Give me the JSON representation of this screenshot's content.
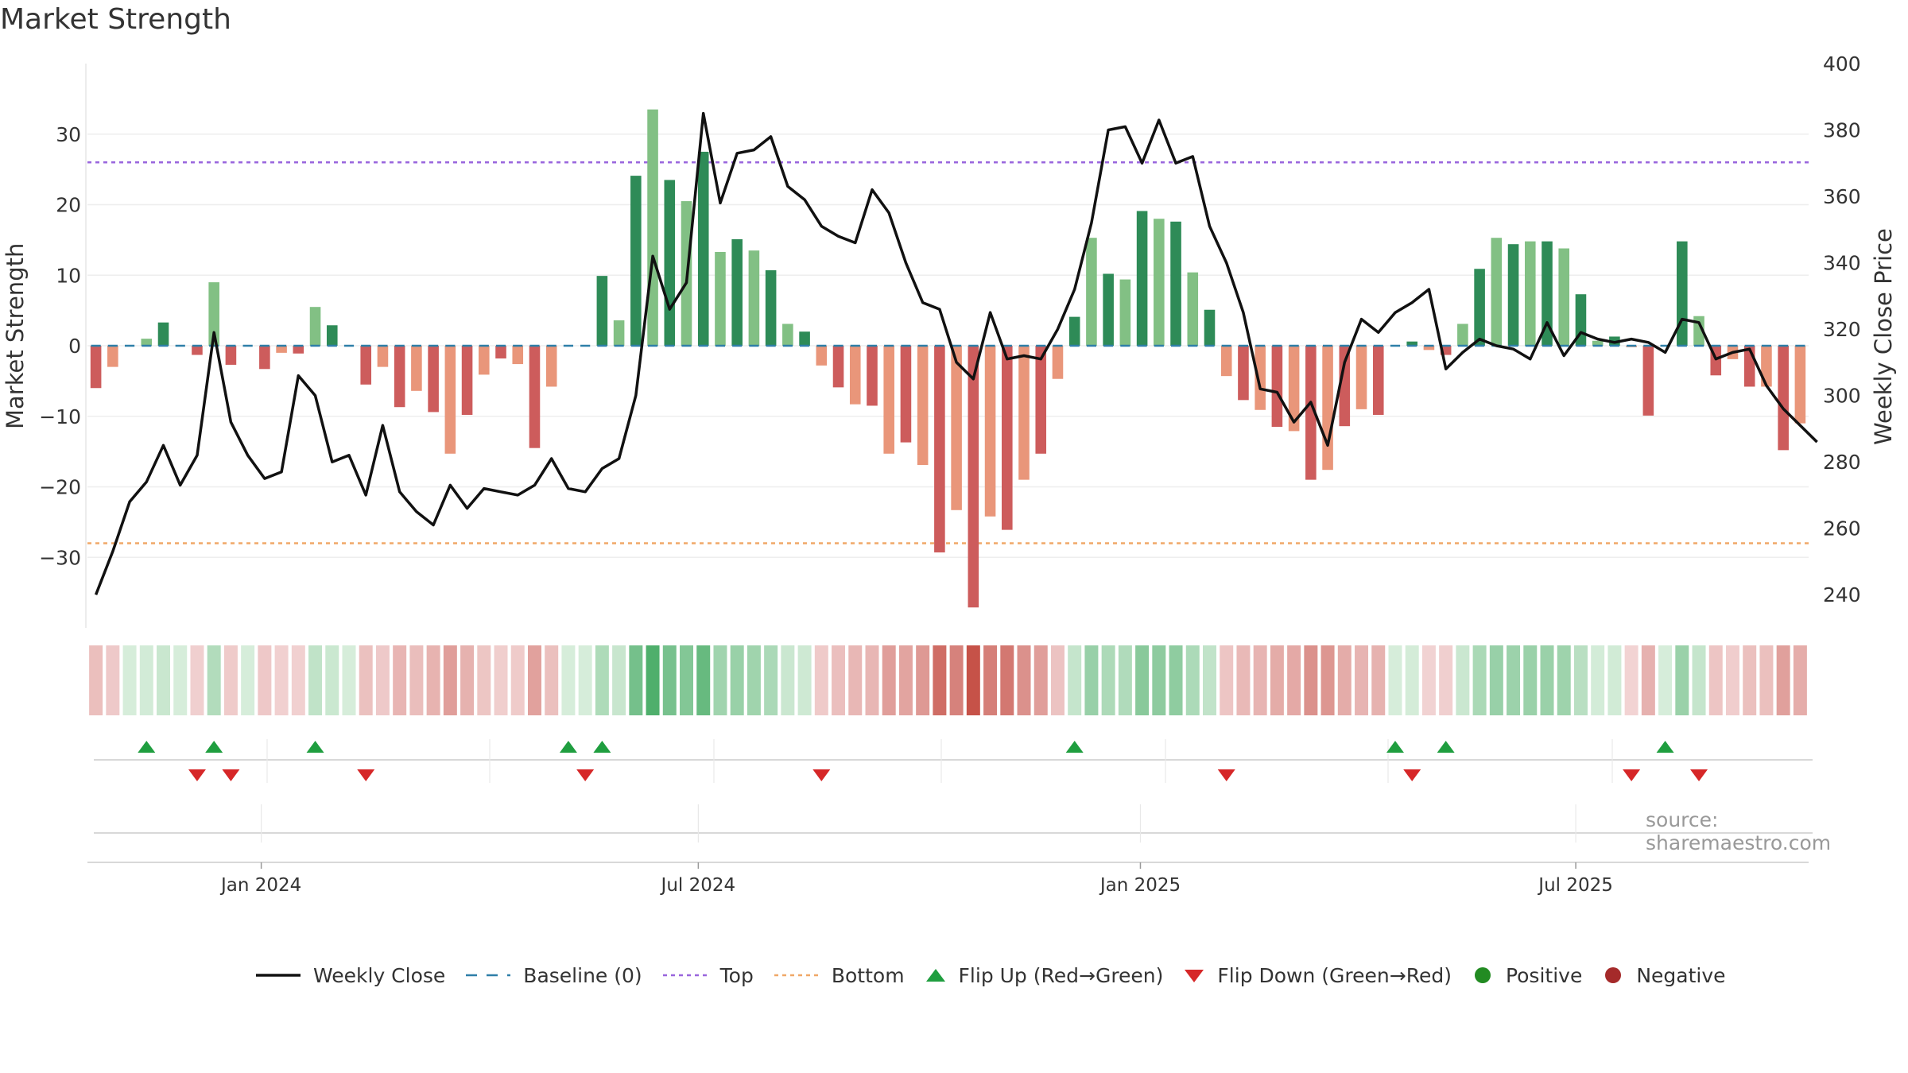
{
  "chart_data": {
    "type": "bar",
    "title": "Market Strength",
    "ylabel": "Market Strength",
    "y2label": "Weekly Close Price",
    "ylim": [
      -40,
      40
    ],
    "y2lim": [
      230,
      400
    ],
    "yticks": [
      30,
      20,
      10,
      0,
      -10,
      -20,
      -30
    ],
    "ytick_labels": [
      "30",
      "20",
      "10",
      "0",
      "−10",
      "−20",
      "−30"
    ],
    "y2ticks": [
      400,
      380,
      360,
      340,
      320,
      300,
      280,
      260,
      240
    ],
    "y2tick_labels": [
      "400",
      "380",
      "360",
      "340",
      "320",
      "300",
      "280",
      "260",
      "240"
    ],
    "top_threshold": 26,
    "bottom_threshold": -28,
    "xtick_labels": [
      "Jan 2024",
      "Jul 2024",
      "Jan 2025",
      "Jul 2025"
    ],
    "xtick_weeks": [
      10.3,
      36.2,
      62.4,
      88.2
    ],
    "strength": [
      -6,
      -3,
      0,
      1,
      3.3,
      0,
      -1.3,
      9,
      -2.7,
      0,
      -3.3,
      -1,
      -1.1,
      5.5,
      2.9,
      0,
      -5.5,
      -3,
      -8.7,
      -6.4,
      -9.4,
      -15.3,
      -9.8,
      -4.1,
      -1.8,
      -2.6,
      -14.5,
      -5.8,
      0,
      0,
      9.9,
      3.6,
      24.1,
      33.5,
      23.5,
      20.5,
      27.5,
      13.3,
      15.1,
      13.5,
      10.7,
      3.1,
      2,
      -2.8,
      -5.9,
      -8.3,
      -8.5,
      -15.3,
      -13.7,
      -16.9,
      -29.3,
      -23.3,
      -37.1,
      -24.2,
      -26.1,
      -19,
      -15.3,
      -4.7,
      4.1,
      15.3,
      10.2,
      9.4,
      19.1,
      18,
      17.6,
      10.4,
      5.1,
      -4.3,
      -7.7,
      -9.1,
      -11.5,
      -12.1,
      -19,
      -17.6,
      -11.4,
      -9,
      -9.8,
      0,
      0.6,
      -0.6,
      -1.3,
      3.1,
      10.9,
      15.3,
      14.4,
      14.8,
      14.8,
      13.8,
      7.3,
      0.7,
      1.3,
      -0.2,
      -9.9,
      0,
      14.8,
      4.2,
      -4.2,
      -1.9,
      -5.8,
      -5.8,
      -14.8,
      -11
    ],
    "weekly_close": [
      240,
      253,
      268,
      274,
      285,
      273,
      282,
      319,
      292,
      282,
      275,
      277,
      306,
      300,
      280,
      282,
      270,
      291,
      271,
      265,
      261,
      273,
      266,
      272,
      271,
      270,
      273,
      281,
      272,
      271,
      278,
      281,
      300,
      342,
      326,
      334,
      385,
      358,
      373,
      374,
      378,
      363,
      359,
      351,
      348,
      346,
      362,
      355,
      340,
      328,
      326,
      310,
      305,
      325,
      311,
      312,
      311,
      320,
      332,
      352,
      380,
      381,
      370,
      383,
      370,
      372,
      351,
      340,
      325,
      302,
      301,
      292,
      298,
      285,
      310,
      323,
      319,
      325,
      328,
      332,
      308,
      313,
      317,
      315,
      314,
      311,
      322,
      312,
      319,
      317,
      316,
      317,
      316,
      313,
      323,
      322,
      311,
      313,
      314,
      303,
      296,
      291,
      286
    ],
    "flip_up_weeks": [
      3,
      7,
      13,
      28,
      30,
      58,
      77,
      80,
      93
    ],
    "flip_down_weeks": [
      6,
      8,
      16,
      29,
      43,
      67,
      78,
      91,
      95
    ],
    "source": "source: sharemaestro.com",
    "legend_position": "bottom",
    "colors": {
      "pos_strong": "#2e8b57",
      "pos_light": "#82c084",
      "neg_strong": "#cd5c5c",
      "neg_light": "#e9967a",
      "close": "#111111",
      "baseline": "#2e7fa8",
      "top": "#9966dd",
      "bottom": "#f0a868",
      "flip_up": "#1f9e3f",
      "flip_down": "#d62728",
      "positive": "#228b22",
      "negative": "#a52a2a"
    },
    "legend": [
      {
        "label": "Weekly Close",
        "kind": "line"
      },
      {
        "label": "Baseline (0)",
        "kind": "baseline"
      },
      {
        "label": "Top",
        "kind": "top"
      },
      {
        "label": "Bottom",
        "kind": "bottom"
      },
      {
        "label": "Flip Up (Red→Green)",
        "kind": "flip_up"
      },
      {
        "label": "Flip Down (Green→Red)",
        "kind": "flip_down"
      },
      {
        "label": "Positive",
        "kind": "positive"
      },
      {
        "label": "Negative",
        "kind": "negative"
      }
    ]
  }
}
